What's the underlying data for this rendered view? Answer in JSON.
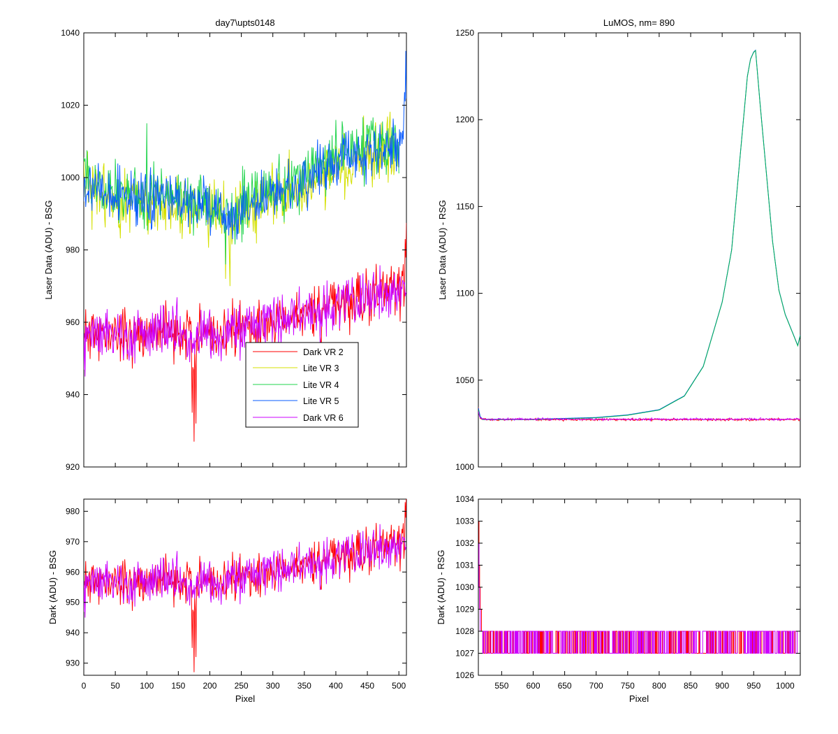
{
  "chart_data": [
    {
      "id": "top-left",
      "type": "line",
      "title": "day7\\upts0148",
      "xlabel": "",
      "ylabel": "Laser Data (ADU) - BSG",
      "xlim": [
        0,
        512
      ],
      "ylim": [
        920,
        1040
      ],
      "xticks": [
        0,
        50,
        100,
        150,
        200,
        250,
        300,
        350,
        400,
        450,
        500
      ],
      "xtick_labels_shown": false,
      "yticks": [
        920,
        940,
        960,
        980,
        1000,
        1020,
        1040
      ],
      "grid": false,
      "legend": {
        "location": "center-right",
        "entries": [
          "Dark VR 2",
          "Lite VR 3",
          "Lite VR 4",
          "Lite VR 5",
          "Dark VR 6"
        ]
      },
      "series": [
        {
          "name": "Dark VR 2",
          "color": "#ff0000",
          "noise": 4.5,
          "seed": 11,
          "x": [
            0,
            100,
            150,
            170,
            175,
            180,
            185,
            200,
            250,
            300,
            350,
            400,
            450,
            500,
            510,
            512
          ],
          "y": [
            957,
            957,
            957,
            957,
            944,
            957,
            957,
            957,
            958,
            960,
            962,
            965,
            967,
            969,
            970,
            982
          ],
          "spikes": [
            [
              172,
              935
            ],
            [
              175,
              927
            ],
            [
              178,
              932
            ],
            [
              510,
              983
            ]
          ]
        },
        {
          "name": "Lite VR 3",
          "color": "#d4e000",
          "noise": 5.5,
          "seed": 23,
          "x": [
            0,
            50,
            100,
            150,
            200,
            230,
            250,
            300,
            350,
            400,
            450,
            500
          ],
          "y": [
            997,
            994,
            993,
            993,
            991,
            987,
            990,
            994,
            998,
            1003,
            1006,
            1008
          ],
          "spikes": [
            [
              225,
              972
            ],
            [
              232,
              970
            ]
          ]
        },
        {
          "name": "Lite VR 4",
          "color": "#22d44e",
          "noise": 5.0,
          "seed": 37,
          "x": [
            0,
            50,
            100,
            150,
            200,
            230,
            250,
            300,
            350,
            400,
            450,
            500
          ],
          "y": [
            999,
            996,
            995,
            995,
            993,
            989,
            992,
            996,
            1000,
            1005,
            1008,
            1010
          ],
          "spikes": [
            [
              100,
              1015
            ],
            [
              225,
              976
            ]
          ]
        },
        {
          "name": "Lite VR 5",
          "color": "#0a5bff",
          "noise": 4.5,
          "seed": 53,
          "x": [
            0,
            50,
            100,
            150,
            200,
            230,
            250,
            300,
            350,
            400,
            450,
            500,
            510,
            512
          ],
          "y": [
            998,
            995,
            994,
            994,
            992,
            988,
            991,
            995,
            999,
            1004,
            1007,
            1009,
            1020,
            1030
          ],
          "spikes": [
            [
              511,
              1035
            ]
          ]
        },
        {
          "name": "Dark VR 6",
          "color": "#cc00ff",
          "noise": 4.5,
          "seed": 71,
          "x": [
            0,
            100,
            150,
            175,
            200,
            250,
            300,
            350,
            400,
            450,
            500,
            512
          ],
          "y": [
            957,
            957,
            957,
            955,
            957,
            958,
            960,
            962,
            965,
            967,
            969,
            970
          ],
          "spikes": [
            [
              2,
              945
            ]
          ]
        }
      ]
    },
    {
      "id": "top-right",
      "type": "line",
      "title": "LuMOS, nm= 890",
      "xlabel": "",
      "ylabel": "Laser Data (ADU) - RSG",
      "xlim": [
        513,
        1024
      ],
      "ylim": [
        1000,
        1250
      ],
      "xticks": [
        550,
        600,
        650,
        700,
        750,
        800,
        850,
        900,
        950,
        1000
      ],
      "xtick_labels_shown": false,
      "yticks": [
        1000,
        1050,
        1100,
        1150,
        1200,
        1250
      ],
      "grid": false,
      "series": [
        {
          "name": "",
          "color": "#ff0000",
          "noise": 0.4,
          "seed": 5,
          "x": [
            513,
            516,
            520,
            600,
            700,
            800,
            900,
            1000,
            1024
          ],
          "y": [
            1034,
            1028,
            1027.3,
            1027.3,
            1027.3,
            1027.3,
            1027.3,
            1027.3,
            1027.3
          ]
        },
        {
          "name": "",
          "color": "#0055ff",
          "noise": 0,
          "seed": 0,
          "x": [
            513,
            516,
            520,
            600,
            650,
            700,
            750,
            800,
            840,
            870,
            900,
            915,
            930,
            940,
            945,
            950,
            953,
            960,
            970,
            980,
            990,
            1000,
            1010,
            1020,
            1024
          ],
          "y": [
            1034,
            1029,
            1027.5,
            1027.5,
            1028,
            1028.5,
            1030,
            1033,
            1041,
            1058,
            1095,
            1125,
            1185,
            1225,
            1235,
            1239,
            1240,
            1210,
            1170,
            1130,
            1102,
            1088,
            1079,
            1070,
            1076
          ]
        },
        {
          "name": "",
          "color": "#00b050",
          "noise": 0,
          "seed": 0,
          "x": [
            513,
            516,
            520,
            600,
            650,
            700,
            750,
            800,
            840,
            870,
            900,
            915,
            930,
            940,
            945,
            950,
            953,
            960,
            970,
            980,
            990,
            1000,
            1010,
            1020,
            1024
          ],
          "y": [
            1033,
            1028.5,
            1027.3,
            1027.3,
            1027.8,
            1028.3,
            1029.8,
            1032.8,
            1040.8,
            1057.8,
            1094.8,
            1124.8,
            1184.8,
            1224.8,
            1234.8,
            1238.8,
            1239.8,
            1209.8,
            1169.8,
            1129.8,
            1101.8,
            1087.8,
            1078.8,
            1069.8,
            1075.8
          ]
        },
        {
          "name": "",
          "color": "#cc00ff",
          "noise": 0.4,
          "seed": 9,
          "x": [
            513,
            516,
            520,
            600,
            700,
            800,
            900,
            1000,
            1024
          ],
          "y": [
            1032,
            1028,
            1027.5,
            1027.5,
            1027.5,
            1027.5,
            1027.5,
            1027.5,
            1027.5
          ]
        }
      ]
    },
    {
      "id": "bottom-left",
      "type": "line",
      "title": "",
      "xlabel": "Pixel",
      "ylabel": "Dark (ADU) - BSG",
      "xlim": [
        0,
        512
      ],
      "ylim": [
        926,
        984
      ],
      "xticks": [
        0,
        50,
        100,
        150,
        200,
        250,
        300,
        350,
        400,
        450,
        500
      ],
      "xtick_labels_shown": true,
      "yticks": [
        930,
        940,
        950,
        960,
        970,
        980
      ],
      "grid": false,
      "series": [
        {
          "name": "",
          "color": "#ff0000",
          "noise": 4.5,
          "seed": 11,
          "x": [
            0,
            100,
            150,
            170,
            175,
            180,
            185,
            200,
            250,
            300,
            350,
            400,
            450,
            500,
            510,
            512
          ],
          "y": [
            957,
            957,
            957,
            957,
            944,
            957,
            957,
            957,
            958,
            960,
            962,
            965,
            967,
            969,
            970,
            982
          ],
          "spikes": [
            [
              172,
              935
            ],
            [
              175,
              927
            ],
            [
              178,
              932
            ],
            [
              510,
              983
            ]
          ]
        },
        {
          "name": "",
          "color": "#cc00ff",
          "noise": 4.5,
          "seed": 71,
          "x": [
            0,
            100,
            150,
            175,
            200,
            250,
            300,
            350,
            400,
            450,
            500,
            512
          ],
          "y": [
            957,
            957,
            957,
            955,
            957,
            958,
            960,
            962,
            965,
            967,
            969,
            970
          ],
          "spikes": [
            [
              2,
              945
            ]
          ]
        }
      ]
    },
    {
      "id": "bottom-right",
      "type": "line",
      "title": "",
      "xlabel": "Pixel",
      "ylabel": "Dark (ADU) - RSG",
      "xlim": [
        513,
        1024
      ],
      "ylim": [
        1026,
        1034
      ],
      "xticks": [
        550,
        600,
        650,
        700,
        750,
        800,
        850,
        900,
        950,
        1000
      ],
      "xtick_labels_shown": true,
      "yticks": [
        1026,
        1027,
        1028,
        1029,
        1030,
        1031,
        1032,
        1033,
        1034
      ],
      "grid": false,
      "quantized": true,
      "series": [
        {
          "name": "",
          "color": "#ff0000",
          "noise": 0,
          "seed": 0,
          "levels": [
            1027,
            1028
          ],
          "seed_q": 17,
          "x": [
            513,
            514,
            516,
            518,
            520
          ],
          "y": [
            1033,
            1031,
            1029,
            1028,
            1027
          ]
        },
        {
          "name": "",
          "color": "#cc00ff",
          "noise": 0,
          "seed": 0,
          "levels": [
            1027,
            1028
          ],
          "seed_q": 29,
          "x": [
            513,
            514,
            516,
            518,
            520
          ],
          "y": [
            1032,
            1030,
            1028,
            1028,
            1027
          ]
        }
      ]
    }
  ]
}
